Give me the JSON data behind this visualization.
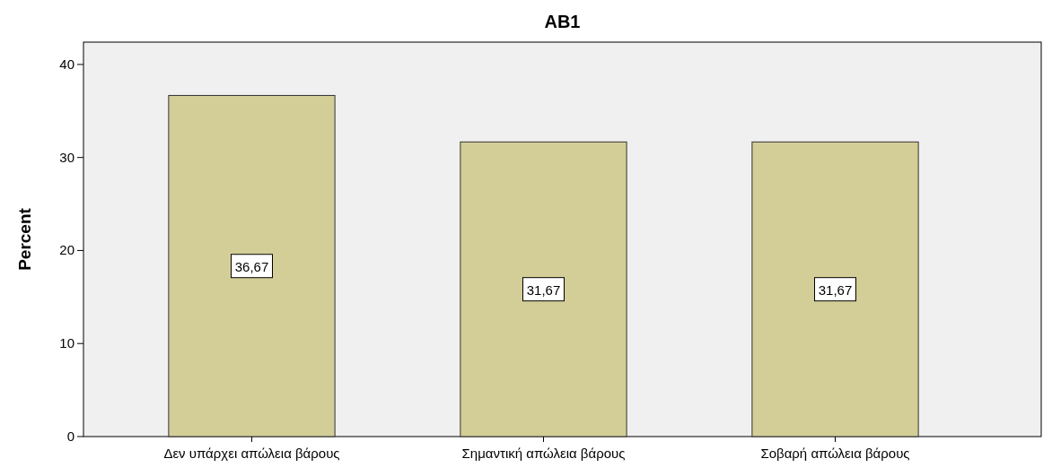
{
  "chart_data": {
    "type": "bar",
    "title": "AB1",
    "ylabel": "Percent",
    "categories": [
      "Δεν υπάρχει απώλεια βάρους",
      "Σημαντική απώλεια βάρους",
      "Σοβαρή απώλεια βάρους"
    ],
    "values": [
      36.67,
      31.67,
      31.67
    ],
    "value_labels": [
      "36,67",
      "31,67",
      "31,67"
    ],
    "color": "#d3ce97",
    "ylim": [
      0,
      42.4
    ],
    "yticks": [
      0,
      10,
      20,
      30,
      40
    ]
  }
}
